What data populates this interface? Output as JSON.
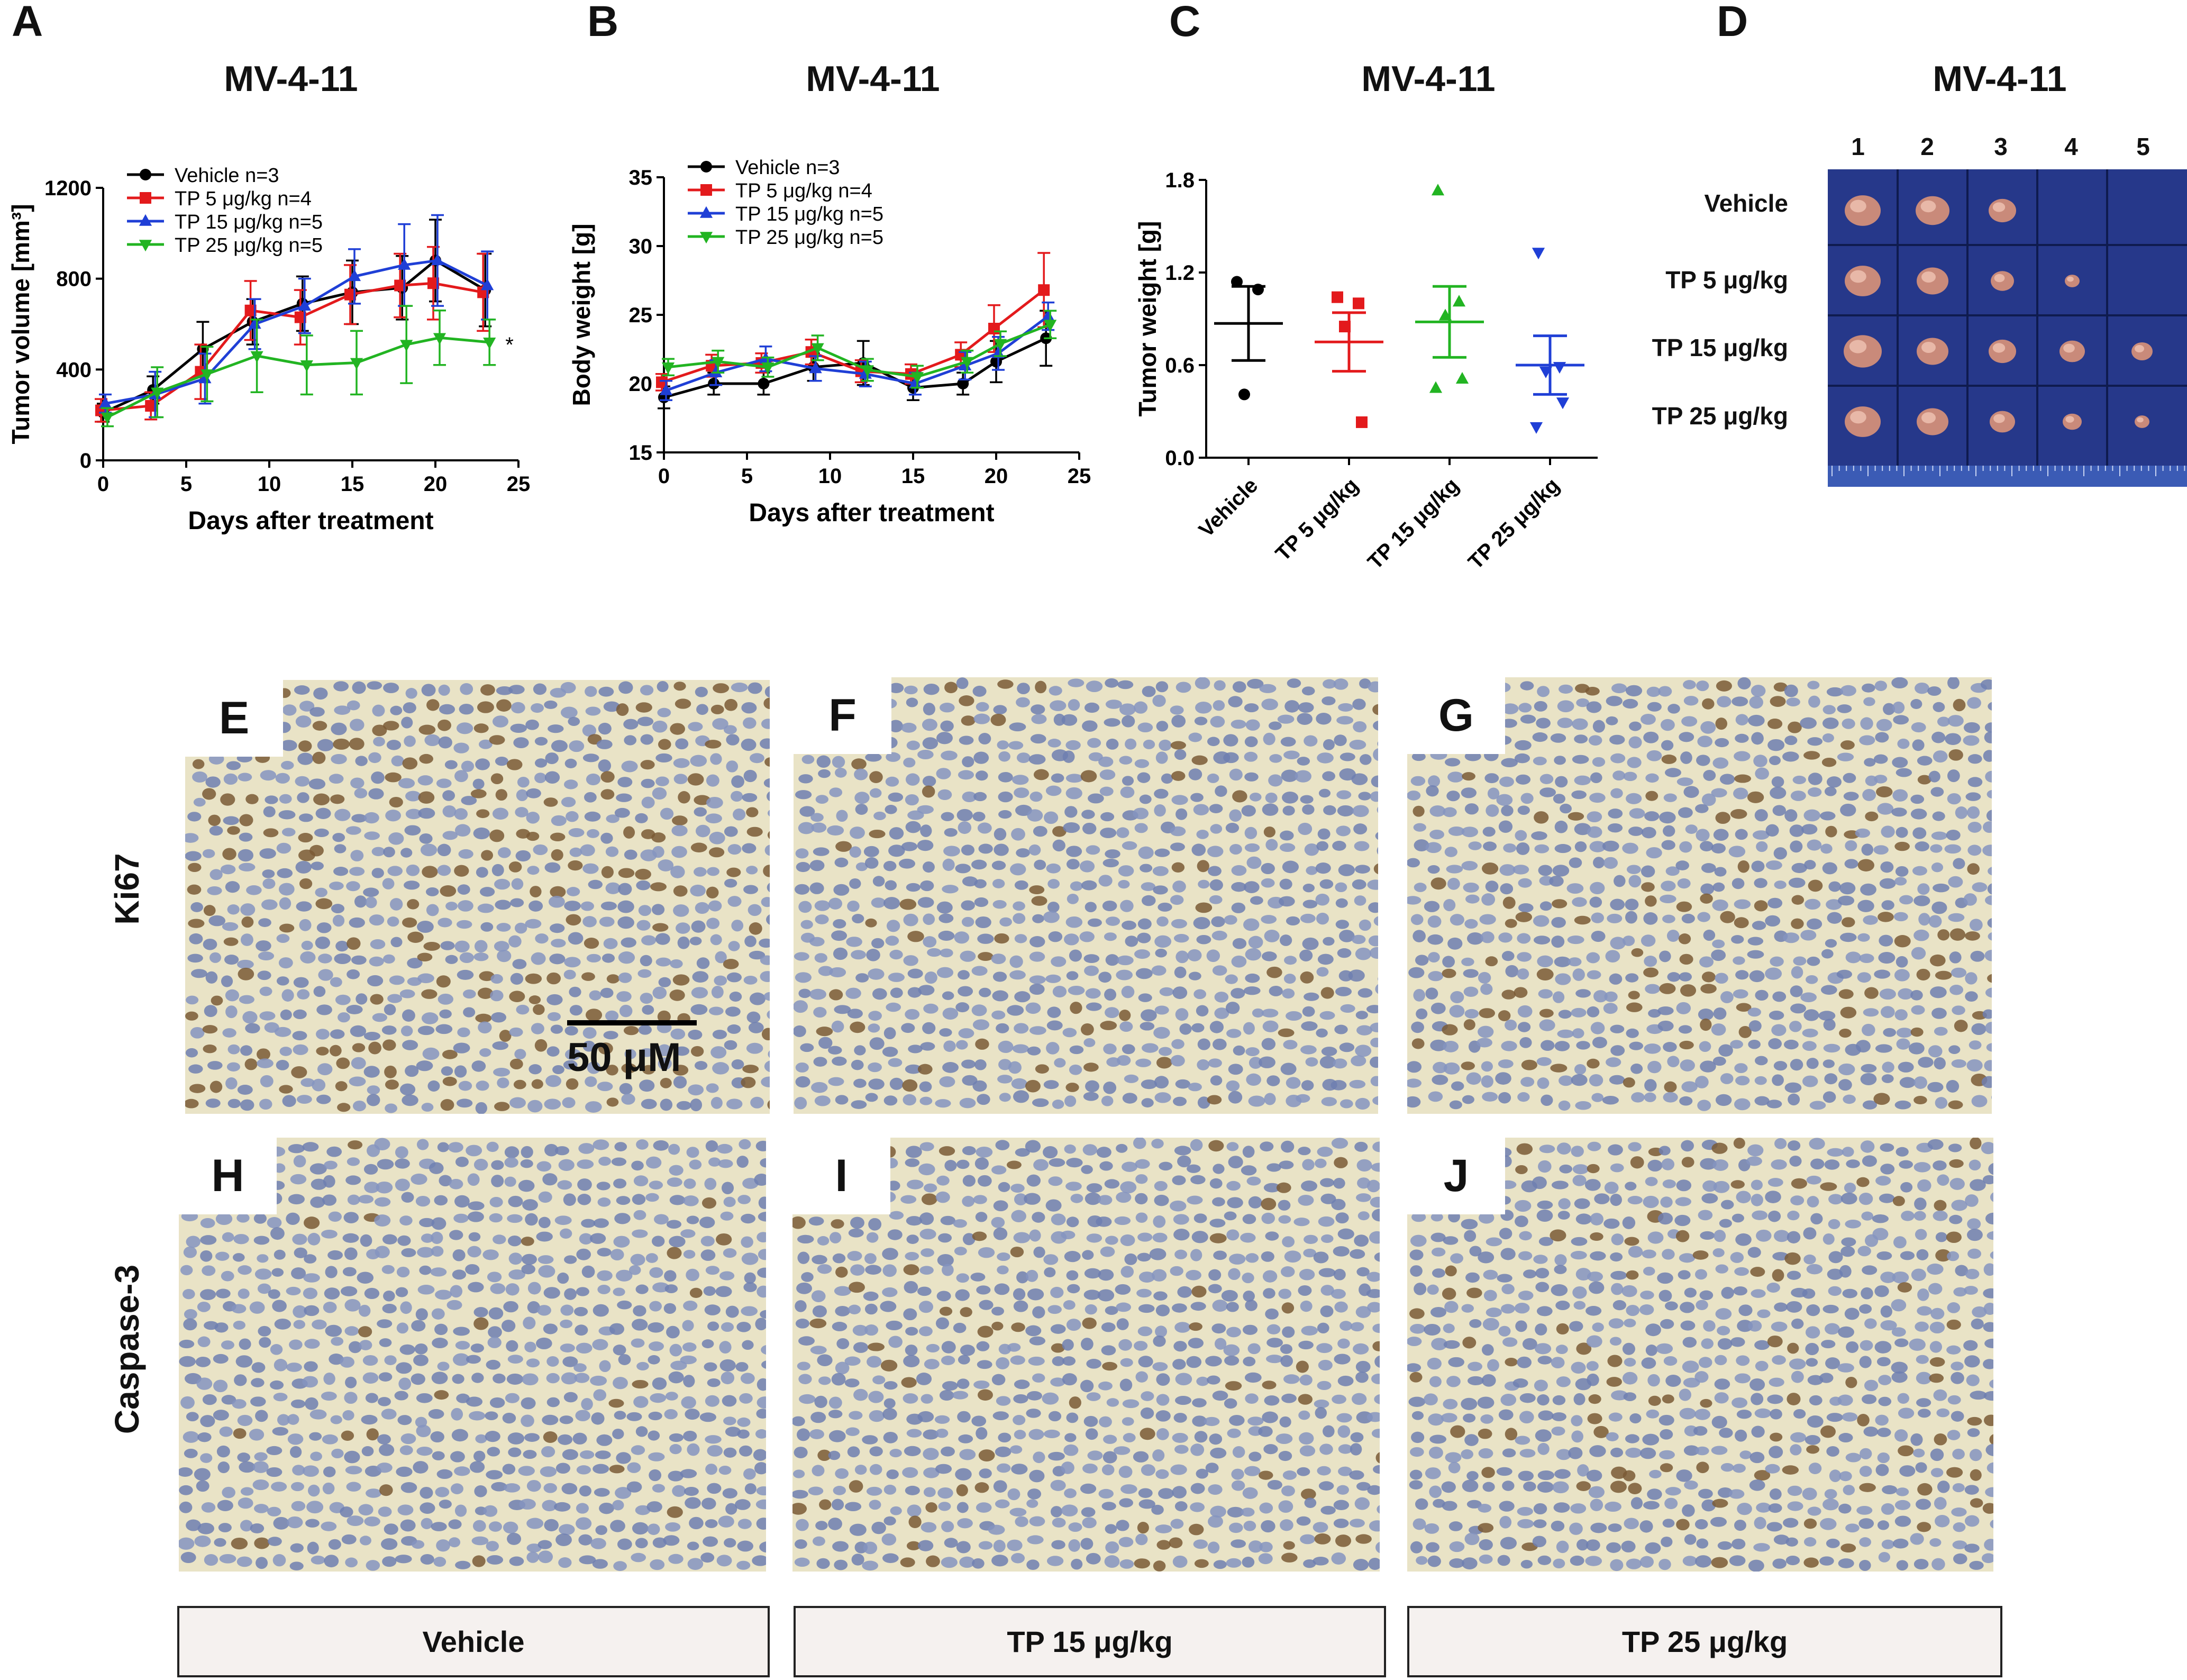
{
  "panels": {
    "A": "A",
    "B": "B",
    "C": "C",
    "D": "D",
    "E": "E",
    "F": "F",
    "G": "G",
    "H": "H",
    "I": "I",
    "J": "J"
  },
  "chart_data": [
    {
      "id": "A",
      "type": "line",
      "title": "MV-4-11",
      "xlabel": "Days after treatment",
      "ylabel": "Tumor volume [mm³]",
      "xlim": [
        0,
        25
      ],
      "ylim": [
        0,
        1200
      ],
      "xticks": [
        0,
        5,
        10,
        15,
        20,
        25
      ],
      "yticks": [
        0,
        400,
        800,
        1200
      ],
      "x": [
        0,
        3,
        6,
        9,
        12,
        15,
        18,
        20,
        23
      ],
      "annotation": "*",
      "series": [
        {
          "name": "Vehicle n=3",
          "color": "#000000",
          "marker": "circle",
          "values": [
            210,
            310,
            490,
            610,
            690,
            740,
            760,
            880,
            750
          ],
          "errors": [
            40,
            60,
            120,
            100,
            120,
            140,
            140,
            180,
            160
          ]
        },
        {
          "name": "TP 5 μg/kg n=4",
          "color": "#e31a1c",
          "marker": "square",
          "values": [
            220,
            240,
            390,
            660,
            630,
            730,
            770,
            780,
            740
          ],
          "errors": [
            50,
            60,
            120,
            130,
            120,
            130,
            140,
            160,
            170
          ]
        },
        {
          "name": "TP 15 μg/kg n=5",
          "color": "#1f3fd6",
          "marker": "triangle-up",
          "values": [
            250,
            290,
            360,
            600,
            680,
            810,
            860,
            880,
            770
          ],
          "errors": [
            40,
            100,
            110,
            110,
            120,
            120,
            180,
            200,
            150
          ]
        },
        {
          "name": "TP 25 μg/kg n=5",
          "color": "#22b422",
          "marker": "triangle-down",
          "values": [
            190,
            300,
            380,
            460,
            420,
            430,
            510,
            540,
            520
          ],
          "errors": [
            40,
            110,
            120,
            160,
            130,
            140,
            170,
            120,
            100
          ]
        }
      ]
    },
    {
      "id": "B",
      "type": "line",
      "title": "MV-4-11",
      "xlabel": "Days after treatment",
      "ylabel": "Body weight [g]",
      "xlim": [
        0,
        25
      ],
      "ylim": [
        15,
        35
      ],
      "xticks": [
        0,
        5,
        10,
        15,
        20,
        25
      ],
      "yticks": [
        15,
        20,
        25,
        30,
        35
      ],
      "x": [
        0,
        3,
        6,
        9,
        12,
        15,
        18,
        20,
        23
      ],
      "series": [
        {
          "name": "Vehicle n=3",
          "color": "#000000",
          "marker": "circle",
          "values": [
            19.0,
            20.0,
            20.0,
            21.2,
            21.5,
            19.7,
            20.0,
            21.6,
            23.3
          ],
          "errors": [
            0.8,
            0.8,
            0.8,
            1.0,
            1.6,
            0.9,
            0.8,
            1.5,
            2.0
          ]
        },
        {
          "name": "TP 5 μg/kg n=4",
          "color": "#e31a1c",
          "marker": "square",
          "values": [
            20.1,
            21.3,
            21.5,
            22.3,
            20.9,
            20.7,
            22.1,
            24.0,
            26.8
          ],
          "errors": [
            0.6,
            0.8,
            0.7,
            0.9,
            0.8,
            0.7,
            0.9,
            1.7,
            2.7
          ]
        },
        {
          "name": "TP 15 μg/kg n=5",
          "color": "#1f3fd6",
          "marker": "triangle-up",
          "values": [
            19.5,
            20.8,
            21.8,
            21.1,
            20.7,
            20.0,
            21.3,
            22.2,
            24.9
          ],
          "errors": [
            0.7,
            0.9,
            0.9,
            0.9,
            0.9,
            0.8,
            1.0,
            1.2,
            1.0
          ]
        },
        {
          "name": "TP 25 μg/kg n=5",
          "color": "#22b422",
          "marker": "triangle-down",
          "values": [
            21.2,
            21.6,
            21.2,
            22.6,
            21.0,
            20.5,
            21.6,
            22.9,
            24.3
          ],
          "errors": [
            0.6,
            0.8,
            0.7,
            0.9,
            0.8,
            0.8,
            0.8,
            0.9,
            1.0
          ]
        }
      ]
    },
    {
      "id": "C",
      "type": "scatter",
      "title": "MV-4-11",
      "ylabel": "Tumor weight [g]",
      "ylim": [
        0.0,
        1.8
      ],
      "yticks": [
        0.0,
        0.6,
        1.2,
        1.8
      ],
      "categories": [
        "Vehicle",
        "TP 5 μg/kg",
        "TP 15 μg/kg",
        "TP 25 μg/kg"
      ],
      "groups": [
        {
          "name": "Vehicle",
          "color": "#000000",
          "marker": "circle",
          "points": [
            1.14,
            1.09,
            0.41
          ],
          "mean": 0.87,
          "sem": 0.24
        },
        {
          "name": "TP 5 μg/kg",
          "color": "#e31a1c",
          "marker": "square",
          "points": [
            1.04,
            1.0,
            0.85,
            0.23
          ],
          "mean": 0.75,
          "sem": 0.19
        },
        {
          "name": "TP 15 μg/kg",
          "color": "#22b422",
          "marker": "triangle-up",
          "points": [
            1.73,
            1.01,
            0.92,
            0.51,
            0.45
          ],
          "mean": 0.88,
          "sem": 0.23
        },
        {
          "name": "TP 25 μg/kg",
          "color": "#1f3fd6",
          "marker": "triangle-down",
          "points": [
            1.33,
            0.59,
            0.56,
            0.36,
            0.2
          ],
          "mean": 0.6,
          "sem": 0.19
        }
      ]
    }
  ],
  "panel_d": {
    "title": "MV-4-11",
    "columns": [
      "1",
      "2",
      "3",
      "4",
      "5"
    ],
    "rows": [
      "Vehicle",
      "TP 5 μg/kg",
      "TP 15 μg/kg",
      "TP 25 μg/kg"
    ],
    "tumor_counts": [
      3,
      4,
      5,
      5
    ]
  },
  "ihc": {
    "row_labels": [
      "Ki67",
      "Caspase-3"
    ],
    "conditions": [
      "Vehicle",
      "TP 15 μg/kg",
      "TP 25 μg/kg"
    ],
    "scale_bar": "50 μM"
  }
}
